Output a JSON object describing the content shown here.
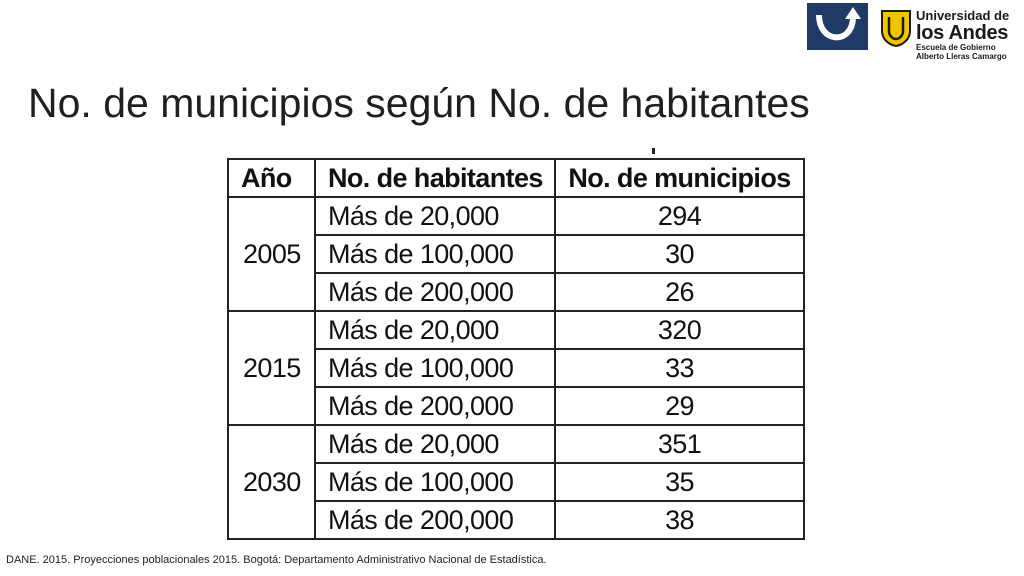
{
  "title": "No. de municipios según No. de habitantes",
  "logo": {
    "line1": "Universidad de",
    "line2": "los Andes",
    "line3": "Escuela de Gobierno",
    "line4": "Alberto Lleras Camargo",
    "brand_color": "#1f3a66",
    "shield_color": "#f2c500"
  },
  "table": {
    "headers": [
      "Año",
      "No. de habitantes",
      "No. de municipios"
    ],
    "groups": [
      {
        "year": "2005",
        "rows": [
          {
            "habitantes": "Más de 20,000",
            "municipios": "294"
          },
          {
            "habitantes": "Más de 100,000",
            "municipios": "30"
          },
          {
            "habitantes": "Más de 200,000",
            "municipios": "26"
          }
        ]
      },
      {
        "year": "2015",
        "rows": [
          {
            "habitantes": "Más de 20,000",
            "municipios": "320"
          },
          {
            "habitantes": "Más de 100,000",
            "municipios": "33"
          },
          {
            "habitantes": "Más de 200,000",
            "municipios": "29"
          }
        ]
      },
      {
        "year": "2030",
        "rows": [
          {
            "habitantes": "Más de 20,000",
            "municipios": "351"
          },
          {
            "habitantes": "Más de 100,000",
            "municipios": "35"
          },
          {
            "habitantes": "Más de 200,000",
            "municipios": "38"
          }
        ]
      }
    ]
  },
  "footnote": "DANE. 2015. Proyecciones poblacionales 2015. Bogotá: Departamento Administrativo Nacional de Estadística."
}
